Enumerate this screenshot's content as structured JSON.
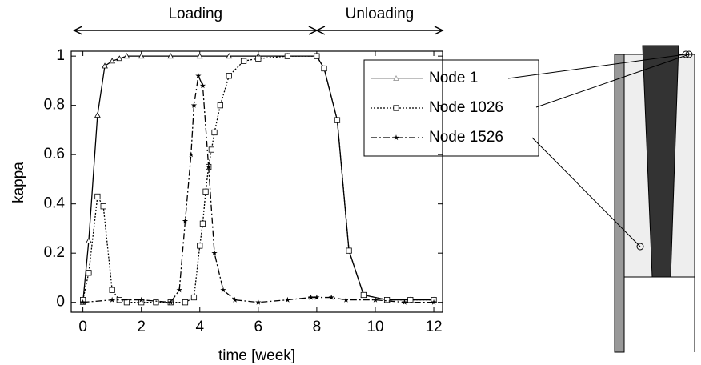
{
  "chart_data": {
    "type": "line",
    "x_label": "time [week]",
    "y_label": "kappa",
    "xlim": [
      -0.4,
      12.3
    ],
    "ylim": [
      -0.04,
      1.02
    ],
    "xticks": [
      0,
      2,
      4,
      6,
      8,
      10,
      12
    ],
    "yticks": [
      0,
      0.2,
      0.4,
      0.6,
      0.8,
      1
    ],
    "phases": [
      {
        "label": "Loading",
        "start": -0.3,
        "end": 8
      },
      {
        "label": "Unloading",
        "start": 8,
        "end": 12.3
      }
    ],
    "series": [
      {
        "name": "Node 1",
        "color": "#000000",
        "legend_color": "#999999",
        "dash": "none",
        "marker": "triangle",
        "x": [
          0,
          0.2,
          0.5,
          0.75,
          1,
          1.25,
          1.5,
          2,
          3,
          4,
          5,
          6,
          7,
          8,
          8.25,
          8.7,
          9.1,
          9.6,
          10.4,
          11.2,
          12
        ],
        "values": [
          0.0,
          0.25,
          0.76,
          0.96,
          0.98,
          0.99,
          1.0,
          1.0,
          1.0,
          1.0,
          1.0,
          1.0,
          1.0,
          1.0,
          0.95,
          0.74,
          0.21,
          0.03,
          0.01,
          0.01,
          0.01
        ]
      },
      {
        "name": "Node 1026",
        "color": "#000000",
        "legend_color": "#000000",
        "dash": "2,2",
        "marker": "square",
        "x": [
          0,
          0.2,
          0.5,
          0.7,
          1,
          1.25,
          1.5,
          2,
          2.5,
          3,
          3.5,
          3.8,
          4,
          4.1,
          4.2,
          4.3,
          4.4,
          4.5,
          4.7,
          5,
          5.5,
          6,
          7,
          8,
          8.25,
          8.7,
          9.1,
          9.6,
          10.4,
          11.2,
          12
        ],
        "values": [
          0.01,
          0.12,
          0.43,
          0.39,
          0.05,
          0.01,
          0.0,
          0.0,
          0.0,
          0.0,
          0.0,
          0.02,
          0.23,
          0.32,
          0.45,
          0.55,
          0.62,
          0.69,
          0.8,
          0.92,
          0.98,
          0.99,
          1.0,
          1.0,
          0.95,
          0.74,
          0.21,
          0.03,
          0.01,
          0.01,
          0.01
        ]
      },
      {
        "name": "Node 1526",
        "color": "#000000",
        "legend_color": "#000000",
        "dash": "8,3,2,3",
        "marker": "star",
        "x": [
          0,
          1,
          2,
          3,
          3.3,
          3.5,
          3.7,
          3.8,
          3.95,
          4.1,
          4.3,
          4.5,
          4.8,
          5.2,
          6,
          7,
          7.8,
          8,
          8.5,
          9,
          10,
          11,
          12
        ],
        "values": [
          0.0,
          0.01,
          0.01,
          0.0,
          0.05,
          0.33,
          0.6,
          0.8,
          0.92,
          0.88,
          0.55,
          0.2,
          0.05,
          0.01,
          0.0,
          0.01,
          0.02,
          0.02,
          0.02,
          0.01,
          0.01,
          0.0,
          0.0
        ]
      }
    ]
  }
}
